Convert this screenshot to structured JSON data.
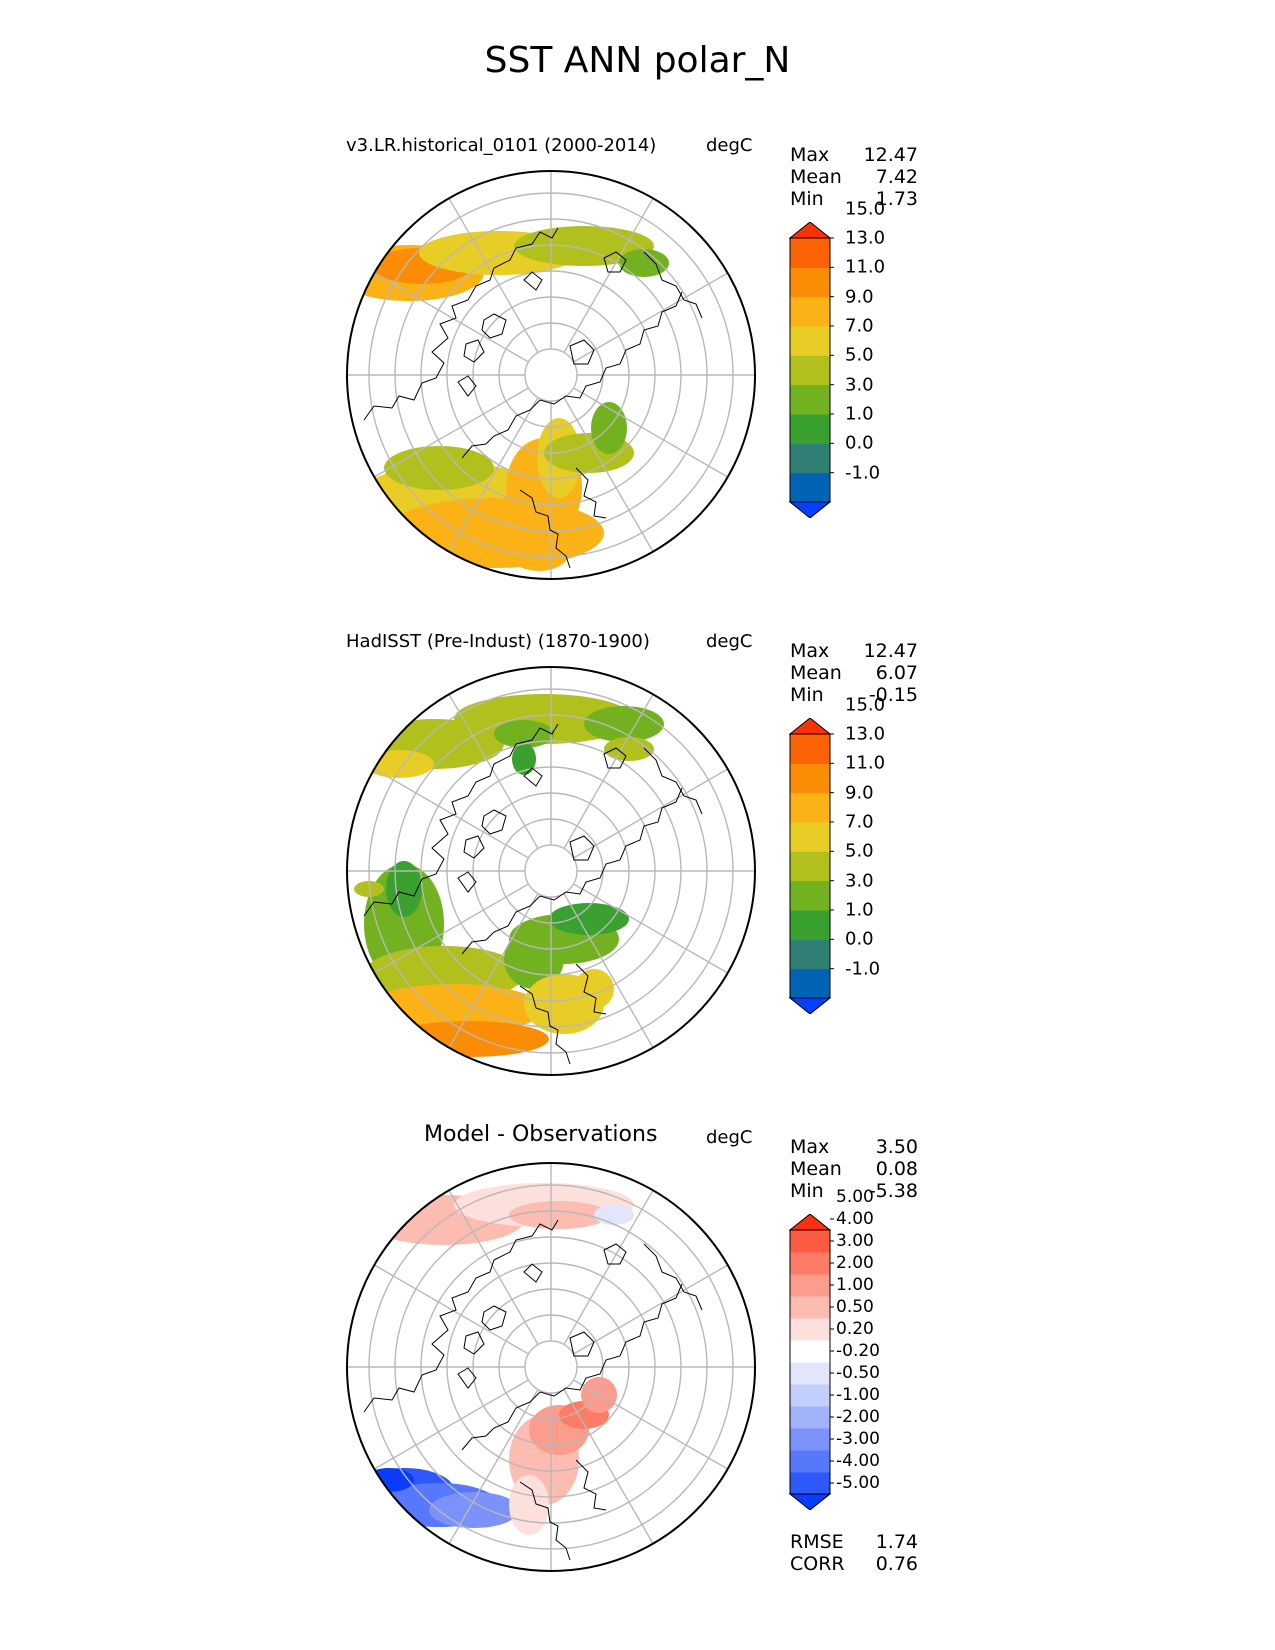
{
  "title": "SST ANN polar_N",
  "panels": [
    {
      "id": "test",
      "title": "v3.LR.historical_0101 (2000-2014)",
      "units": "degC",
      "stats": {
        "labels": [
          "Max",
          "Mean",
          "Min"
        ],
        "values": [
          "12.47",
          "7.42",
          "1.73"
        ]
      },
      "colorbar": {
        "colors": [
          "#0540ff",
          "#0063b5",
          "#2f7f74",
          "#3aa02f",
          "#72b11f",
          "#b2c01e",
          "#e7cd25",
          "#fbb216",
          "#fb8c06",
          "#fc6306",
          "#fa3204"
        ],
        "ticks": [
          "-1.0",
          "0.0",
          "1.0",
          "3.0",
          "5.0",
          "7.0",
          "9.0",
          "11.0",
          "13.0",
          "15.0"
        ]
      },
      "field": [
        {
          "cx": 65,
          "cy": 105,
          "rx": 75,
          "ry": 28,
          "c": "#fbb216"
        },
        {
          "cx": 78,
          "cy": 98,
          "rx": 50,
          "ry": 18,
          "c": "#fb8c06"
        },
        {
          "cx": 155,
          "cy": 85,
          "rx": 80,
          "ry": 22,
          "c": "#e7cd25"
        },
        {
          "cx": 240,
          "cy": 78,
          "rx": 70,
          "ry": 20,
          "c": "#b2c01e"
        },
        {
          "cx": 300,
          "cy": 95,
          "rx": 25,
          "ry": 14,
          "c": "#72b11f"
        },
        {
          "cx": 110,
          "cy": 330,
          "rx": 95,
          "ry": 35,
          "c": "#e7cd25"
        },
        {
          "cx": 150,
          "cy": 365,
          "rx": 110,
          "ry": 35,
          "c": "#fbb216"
        },
        {
          "cx": 95,
          "cy": 300,
          "rx": 55,
          "ry": 22,
          "c": "#b2c01e"
        },
        {
          "cx": 200,
          "cy": 320,
          "rx": 38,
          "ry": 50,
          "c": "#fbb216"
        },
        {
          "cx": 215,
          "cy": 290,
          "rx": 22,
          "ry": 40,
          "c": "#e7cd25"
        },
        {
          "cx": 245,
          "cy": 285,
          "rx": 45,
          "ry": 20,
          "c": "#b2c01e"
        },
        {
          "cx": 265,
          "cy": 260,
          "rx": 18,
          "ry": 26,
          "c": "#72b11f"
        },
        {
          "cx": 195,
          "cy": 385,
          "rx": 30,
          "ry": 18,
          "c": "#fbb216"
        }
      ]
    },
    {
      "id": "reference",
      "title": "HadISST (Pre-Indust) (1870-1900)",
      "units": "degC",
      "stats": {
        "labels": [
          "Max",
          "Mean",
          "Min"
        ],
        "values": [
          "12.47",
          "6.07",
          "-0.15"
        ]
      },
      "colorbar": {
        "colors": [
          "#0540ff",
          "#0063b5",
          "#2f7f74",
          "#3aa02f",
          "#72b11f",
          "#b2c01e",
          "#e7cd25",
          "#fbb216",
          "#fb8c06",
          "#fc6306",
          "#fa3204"
        ],
        "ticks": [
          "-1.0",
          "0.0",
          "1.0",
          "3.0",
          "5.0",
          "7.0",
          "9.0",
          "11.0",
          "13.0",
          "15.0"
        ]
      },
      "field": [
        {
          "cx": 90,
          "cy": 80,
          "rx": 70,
          "ry": 25,
          "c": "#b2c01e"
        },
        {
          "cx": 55,
          "cy": 100,
          "rx": 35,
          "ry": 14,
          "c": "#e7cd25"
        },
        {
          "cx": 200,
          "cy": 55,
          "rx": 90,
          "ry": 25,
          "c": "#b2c01e"
        },
        {
          "cx": 280,
          "cy": 60,
          "rx": 40,
          "ry": 18,
          "c": "#72b11f"
        },
        {
          "cx": 180,
          "cy": 70,
          "rx": 30,
          "ry": 14,
          "c": "#72b11f"
        },
        {
          "cx": 285,
          "cy": 85,
          "rx": 25,
          "ry": 12,
          "c": "#b2c01e"
        },
        {
          "cx": 180,
          "cy": 95,
          "rx": 12,
          "ry": 16,
          "c": "#3aa02f"
        },
        {
          "cx": 60,
          "cy": 260,
          "rx": 40,
          "ry": 60,
          "c": "#72b11f"
        },
        {
          "cx": 60,
          "cy": 225,
          "rx": 18,
          "ry": 28,
          "c": "#3aa02f"
        },
        {
          "cx": 25,
          "cy": 225,
          "rx": 15,
          "ry": 8,
          "c": "#b2c01e"
        },
        {
          "cx": 100,
          "cy": 310,
          "rx": 80,
          "ry": 28,
          "c": "#b2c01e"
        },
        {
          "cx": 110,
          "cy": 345,
          "rx": 90,
          "ry": 25,
          "c": "#fbb216"
        },
        {
          "cx": 125,
          "cy": 375,
          "rx": 80,
          "ry": 18,
          "c": "#fb8c06"
        },
        {
          "cx": 190,
          "cy": 295,
          "rx": 30,
          "ry": 30,
          "c": "#72b11f"
        },
        {
          "cx": 220,
          "cy": 275,
          "rx": 55,
          "ry": 25,
          "c": "#72b11f"
        },
        {
          "cx": 245,
          "cy": 255,
          "rx": 40,
          "ry": 16,
          "c": "#3aa02f"
        },
        {
          "cx": 220,
          "cy": 340,
          "rx": 40,
          "ry": 30,
          "c": "#e7cd25"
        },
        {
          "cx": 250,
          "cy": 325,
          "rx": 20,
          "ry": 20,
          "c": "#e7cd25"
        }
      ]
    },
    {
      "id": "diff",
      "title": "Model - Observations",
      "units": "degC",
      "stats": {
        "labels": [
          "Max",
          "Mean",
          "Min"
        ],
        "values": [
          "3.50",
          "0.08",
          "-5.38"
        ]
      },
      "colorbar": {
        "colors": [
          "#0a3dfa",
          "#2f58fb",
          "#5778fb",
          "#7c92fb",
          "#a2b3fb",
          "#c3cefb",
          "#e1e6fb",
          "#ffffff",
          "#fde0dc",
          "#fcbcb2",
          "#fc9c8c",
          "#fc7c68",
          "#fc5a42",
          "#fa2e10"
        ],
        "ticks": [
          "-5.00",
          "-4.00",
          "-3.00",
          "-2.00",
          "-1.00",
          "-0.50",
          "-0.20",
          "0.20",
          "0.50",
          "1.00",
          "2.00",
          "3.00",
          "4.00",
          "5.00"
        ]
      },
      "field": [
        {
          "cx": 100,
          "cy": 60,
          "rx": 80,
          "ry": 25,
          "c": "#fcbcb2"
        },
        {
          "cx": 200,
          "cy": 45,
          "rx": 90,
          "ry": 22,
          "c": "#fde0dc"
        },
        {
          "cx": 215,
          "cy": 55,
          "rx": 50,
          "ry": 14,
          "c": "#fcbcb2"
        },
        {
          "cx": 270,
          "cy": 55,
          "rx": 20,
          "ry": 10,
          "c": "#e1e6fb"
        },
        {
          "cx": 60,
          "cy": 330,
          "rx": 50,
          "ry": 22,
          "c": "#2f58fb"
        },
        {
          "cx": 95,
          "cy": 345,
          "rx": 60,
          "ry": 22,
          "c": "#5778fb"
        },
        {
          "cx": 130,
          "cy": 350,
          "rx": 45,
          "ry": 18,
          "c": "#7c92fb"
        },
        {
          "cx": 45,
          "cy": 320,
          "rx": 25,
          "ry": 12,
          "c": "#0a3dfa"
        },
        {
          "cx": 200,
          "cy": 300,
          "rx": 35,
          "ry": 45,
          "c": "#fcbcb2"
        },
        {
          "cx": 215,
          "cy": 270,
          "rx": 30,
          "ry": 25,
          "c": "#fc9c8c"
        },
        {
          "cx": 240,
          "cy": 255,
          "rx": 25,
          "ry": 14,
          "c": "#fc7c68"
        },
        {
          "cx": 255,
          "cy": 235,
          "rx": 18,
          "ry": 18,
          "c": "#fc9c8c"
        },
        {
          "cx": 185,
          "cy": 345,
          "rx": 20,
          "ry": 30,
          "c": "#fde0dc"
        }
      ],
      "footer": {
        "labels": [
          "RMSE",
          "CORR"
        ],
        "values": [
          "1.74",
          "0.76"
        ]
      }
    }
  ]
}
